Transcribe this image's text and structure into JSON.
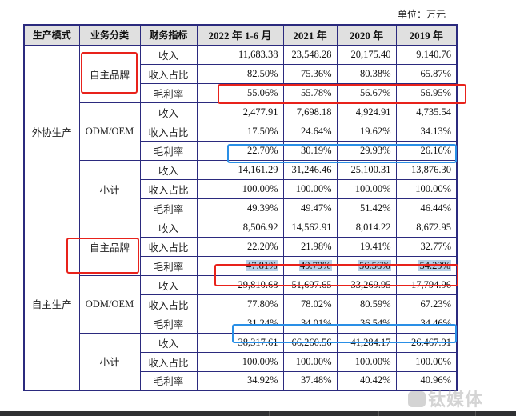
{
  "unit_label": "单位：万元",
  "headers": [
    "生产模式",
    "业务分类",
    "财务指标",
    "2022 年 1-6 月",
    "2021 年",
    "2020 年",
    "2019 年"
  ],
  "metrics": [
    "收入",
    "收入占比",
    "毛利率"
  ],
  "groups": [
    {
      "mode": "外协生产",
      "categories": [
        {
          "name": "自主品牌",
          "rows": [
            [
              "11,683.38",
              "23,548.28",
              "20,175.40",
              "9,140.76"
            ],
            [
              "82.50%",
              "75.36%",
              "80.38%",
              "65.87%"
            ],
            [
              "55.06%",
              "55.78%",
              "56.67%",
              "56.95%"
            ]
          ]
        },
        {
          "name": "ODM/OEM",
          "rows": [
            [
              "2,477.91",
              "7,698.18",
              "4,924.91",
              "4,735.54"
            ],
            [
              "17.50%",
              "24.64%",
              "19.62%",
              "34.13%"
            ],
            [
              "22.70%",
              "30.19%",
              "29.93%",
              "26.16%"
            ]
          ]
        },
        {
          "name": "小计",
          "rows": [
            [
              "14,161.29",
              "31,246.46",
              "25,100.31",
              "13,876.30"
            ],
            [
              "100.00%",
              "100.00%",
              "100.00%",
              "100.00%"
            ],
            [
              "49.39%",
              "49.47%",
              "51.42%",
              "46.44%"
            ]
          ]
        }
      ]
    },
    {
      "mode": "自主生产",
      "categories": [
        {
          "name": "自主品牌",
          "rows": [
            [
              "8,506.92",
              "14,562.91",
              "8,014.22",
              "8,672.95"
            ],
            [
              "22.20%",
              "21.98%",
              "19.41%",
              "32.77%"
            ],
            [
              "47.81%",
              "49.79%",
              "56.56%",
              "54.29%"
            ]
          ]
        },
        {
          "name": "ODM/OEM",
          "rows": [
            [
              "29,810.68",
              "51,697.65",
              "33,269.95",
              "17,794.96"
            ],
            [
              "77.80%",
              "78.02%",
              "80.59%",
              "67.23%"
            ],
            [
              "31.24%",
              "34.01%",
              "36.54%",
              "34.46%"
            ]
          ]
        },
        {
          "name": "小计",
          "rows": [
            [
              "38,317.61",
              "66,260.56",
              "41,284.17",
              "26,467.91"
            ],
            [
              "100.00%",
              "100.00%",
              "100.00%",
              "100.00%"
            ],
            [
              "34.92%",
              "37.48%",
              "40.42%",
              "40.96%"
            ]
          ]
        }
      ]
    }
  ],
  "annotation_colors": {
    "red": "#e8221b",
    "blue": "#2a8fe6",
    "text_highlight": "#b7cfe6",
    "border": "#2b2a7e",
    "header_bg": "#e0e0e0"
  },
  "watermark": "钛媒体"
}
